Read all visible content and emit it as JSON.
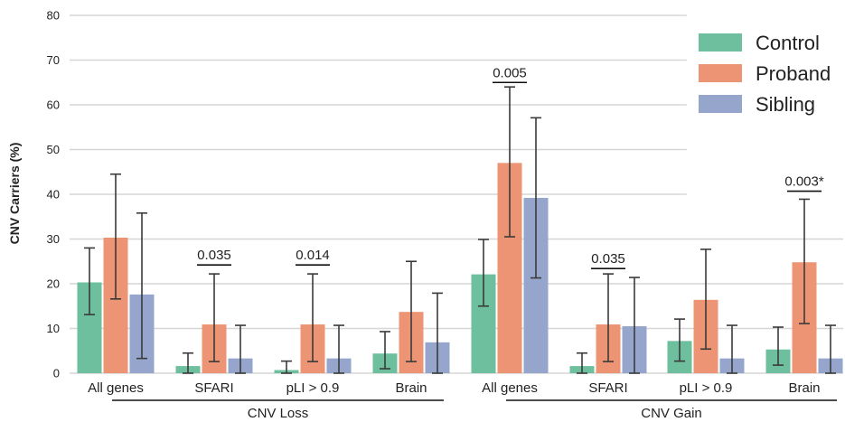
{
  "chart_data": {
    "type": "bar",
    "ylabel": "CNV Carriers (%)",
    "ylim": [
      0,
      80
    ],
    "yticks": [
      0,
      10,
      20,
      30,
      40,
      50,
      60,
      70,
      80
    ],
    "grid": "horizontal",
    "legend_placement": "top-right",
    "categories": [
      "All genes",
      "SFARI",
      "pLI > 0.9",
      "Brain",
      "All genes",
      "SFARI",
      "pLI > 0.9",
      "Brain"
    ],
    "groups": [
      {
        "label": "CNV Loss",
        "categories": [
          0,
          1,
          2,
          3
        ]
      },
      {
        "label": "CNV Gain",
        "categories": [
          4,
          5,
          6,
          7
        ]
      }
    ],
    "series": [
      {
        "name": "Control",
        "color": "#6dbf9e",
        "values": [
          20.3,
          1.6,
          0.7,
          4.4,
          22.1,
          1.6,
          7.2,
          5.3
        ],
        "error_low": [
          13.1,
          0.0,
          0.0,
          1.0,
          15.0,
          0.0,
          2.7,
          1.8
        ],
        "error_high": [
          28.0,
          4.5,
          2.7,
          9.3,
          29.9,
          4.5,
          12.1,
          10.3
        ]
      },
      {
        "name": "Proband",
        "color": "#ec9473",
        "values": [
          30.3,
          10.9,
          10.9,
          13.7,
          47.0,
          10.9,
          16.4,
          24.8
        ],
        "error_low": [
          16.6,
          2.6,
          2.6,
          2.6,
          30.5,
          2.6,
          5.4,
          11.1
        ],
        "error_high": [
          44.5,
          22.2,
          22.2,
          25.0,
          64.0,
          22.2,
          27.7,
          38.9
        ]
      },
      {
        "name": "Sibling",
        "color": "#95a5cc",
        "values": [
          17.6,
          3.3,
          3.3,
          6.9,
          39.2,
          10.5,
          3.3,
          3.3
        ],
        "error_low": [
          3.3,
          0.0,
          0.0,
          0.0,
          21.3,
          0.0,
          0.0,
          0.0
        ],
        "error_high": [
          35.8,
          10.7,
          10.7,
          17.9,
          57.1,
          21.4,
          10.7,
          10.7
        ]
      }
    ],
    "annotations": [
      {
        "text": "0.035",
        "category": 1,
        "y": 24.2
      },
      {
        "text": "0.014",
        "category": 2,
        "y": 24.2
      },
      {
        "text": "0.005",
        "category": 4,
        "y": 65.0
      },
      {
        "text": "0.035",
        "category": 5,
        "y": 23.4
      },
      {
        "text": "0.003*",
        "category": 7,
        "y": 40.7
      }
    ]
  }
}
